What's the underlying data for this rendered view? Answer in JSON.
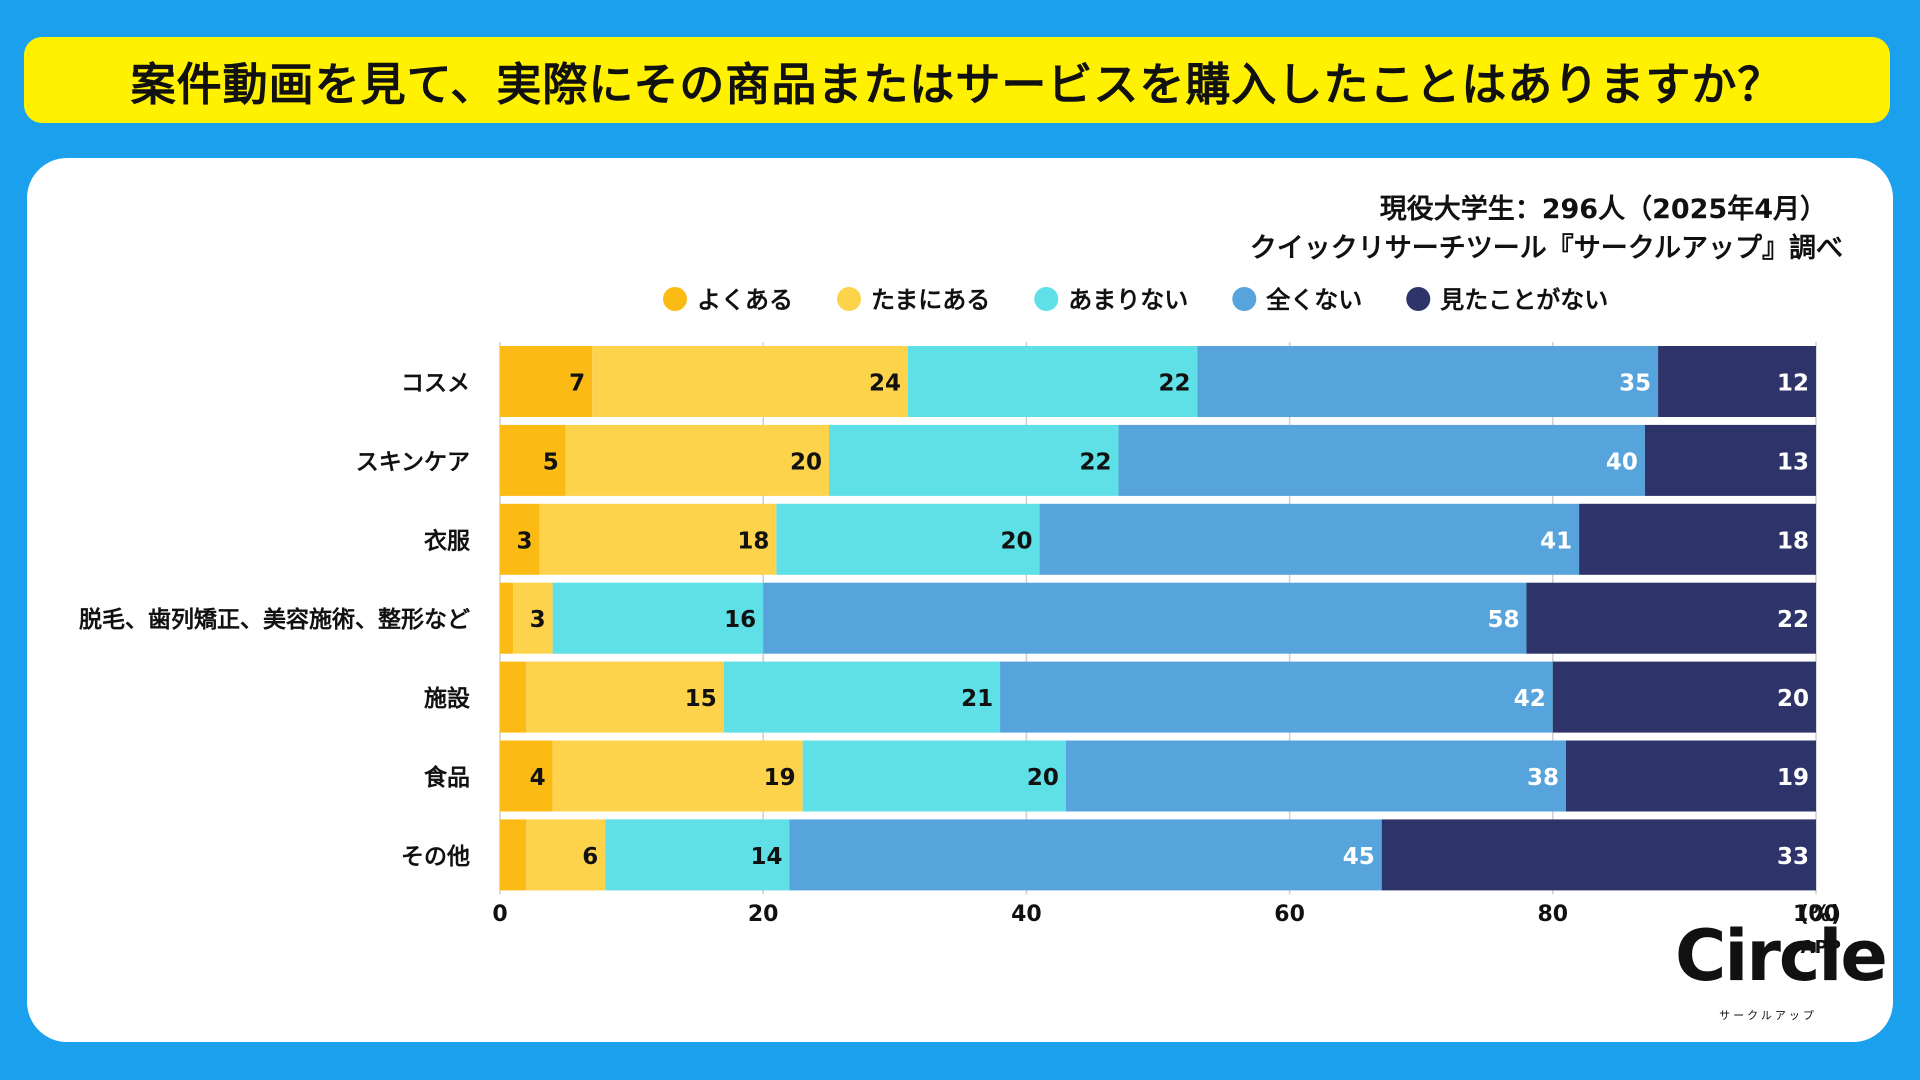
{
  "title": "案件動画を見て、実際にその商品またはサービスを購入したことはありますか？",
  "source": {
    "line1": "現役大学生：296人（2025年4月）",
    "line2": "クイックリサーチツール『サークルアップ』調べ"
  },
  "logo": {
    "main": "Circle",
    "super": "APP",
    "sub": "サークルアップ"
  },
  "chart_data": {
    "type": "bar",
    "orientation": "horizontal",
    "stacked": true,
    "title": "案件動画を見て、実際にその商品またはサービスを購入したことはありますか？",
    "xlabel": "(%)",
    "ylabel": "",
    "xlim": [
      0,
      100
    ],
    "xticks": [
      "0",
      "20",
      "40",
      "60",
      "80",
      "100"
    ],
    "legend_position": "top",
    "grid": true,
    "categories": [
      "コスメ",
      "スキンケア",
      "衣服",
      "脱毛、歯列矯正、美容施術、整形など",
      "施設",
      "食品",
      "その他"
    ],
    "series": [
      {
        "name": "よくある",
        "color": "#fcbb14",
        "values": [
          7,
          5,
          3,
          1,
          2,
          4,
          2
        ],
        "labels": [
          "7",
          "5",
          "3",
          "",
          "",
          "4",
          ""
        ]
      },
      {
        "name": "たまにある",
        "color": "#fcd34b",
        "values": [
          24,
          20,
          18,
          3,
          15,
          19,
          6
        ],
        "labels": [
          "24",
          "20",
          "18",
          "3",
          "15",
          "19",
          "6"
        ]
      },
      {
        "name": "あまりない",
        "color": "#5ee0e6",
        "values": [
          22,
          22,
          20,
          16,
          21,
          20,
          14
        ],
        "labels": [
          "22",
          "22",
          "20",
          "16",
          "21",
          "20",
          "14"
        ]
      },
      {
        "name": "全くない",
        "color": "#57a3db",
        "values": [
          35,
          40,
          41,
          58,
          42,
          38,
          45
        ],
        "labels": [
          "35",
          "40",
          "41",
          "58",
          "42",
          "38",
          "45"
        ]
      },
      {
        "name": "見たことがない",
        "color": "#2e336a",
        "values": [
          12,
          13,
          18,
          22,
          20,
          19,
          33
        ],
        "labels": [
          "12",
          "13",
          "18",
          "22",
          "20",
          "19",
          "33"
        ]
      }
    ]
  }
}
